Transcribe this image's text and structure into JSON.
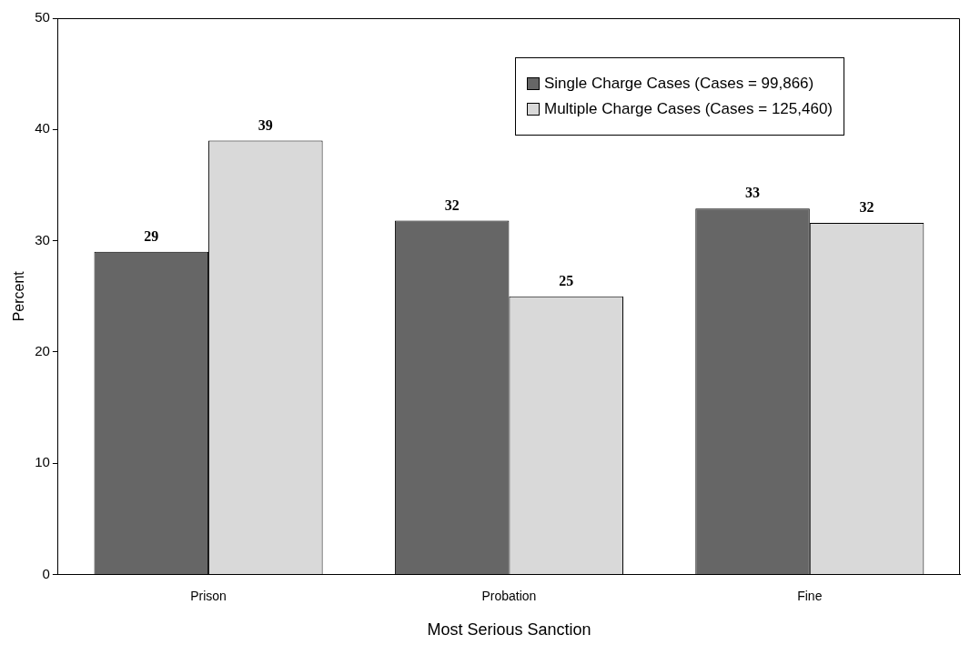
{
  "chart_data": {
    "type": "bar",
    "xlabel": "Most Serious Sanction",
    "ylabel": "Percent",
    "categories": [
      "Prison",
      "Probation",
      "Fine"
    ],
    "series": [
      {
        "name": "Single Charge Cases (Cases = 99,866)",
        "color": "#666666",
        "values": [
          29,
          31.8,
          32.9
        ],
        "value_labels": [
          "29",
          "32",
          "33"
        ]
      },
      {
        "name": "Multiple Charge Cases (Cases = 125,460)",
        "color": "#d9d9d9",
        "values": [
          39,
          25,
          31.6
        ],
        "value_labels": [
          "39",
          "25",
          "32"
        ]
      }
    ],
    "ylim": [
      0,
      50
    ],
    "yticks": [
      0,
      10,
      20,
      30,
      40,
      50
    ],
    "grid": false,
    "legend": "top right"
  }
}
